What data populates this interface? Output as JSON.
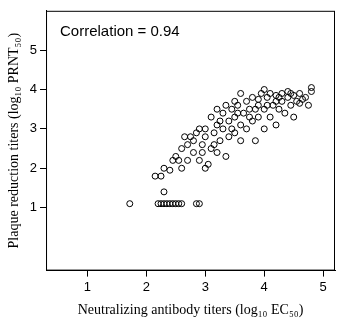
{
  "chart_data": {
    "type": "scatter",
    "annotation": "Correlation = 0.94",
    "x_label": "Neutralizing antibody titers (log₁₀ EC₅₀)",
    "y_label": "Plaque reduction titers (log₁₀ PRNT₅₀)",
    "x": [
      1.72,
      2.2,
      2.25,
      2.3,
      2.35,
      2.4,
      2.45,
      2.5,
      2.55,
      2.6,
      2.85,
      2.9,
      2.3,
      2.15,
      2.25,
      2.3,
      2.4,
      2.45,
      2.5,
      2.55,
      2.6,
      2.6,
      2.7,
      2.7,
      2.75,
      2.8,
      2.85,
      2.9,
      2.9,
      2.95,
      3.0,
      3.0,
      3.05,
      3.1,
      3.1,
      3.15,
      3.2,
      3.2,
      3.25,
      3.3,
      3.3,
      3.35,
      3.4,
      3.4,
      3.45,
      3.5,
      3.5,
      3.55,
      3.6,
      3.6,
      3.65,
      3.7,
      3.7,
      3.75,
      3.8,
      3.8,
      3.85,
      3.9,
      3.9,
      3.95,
      4.0,
      4.0,
      4.05,
      4.1,
      4.1,
      4.15,
      4.2,
      4.2,
      4.25,
      4.3,
      4.3,
      4.35,
      4.4,
      4.4,
      4.45,
      4.5,
      4.5,
      4.55,
      4.6,
      4.65,
      4.7,
      4.8,
      4.8,
      4.75,
      3.0,
      2.8,
      2.65,
      3.2,
      3.5,
      4.0,
      3.35,
      3.6,
      3.9,
      4.2,
      4.45,
      2.95,
      3.15,
      3.45,
      3.75,
      4.05,
      4.25,
      4.6,
      3.25,
      3.55,
      3.85
    ],
    "values": [
      1.1,
      1.1,
      1.1,
      1.1,
      1.1,
      1.1,
      1.1,
      1.1,
      1.1,
      1.1,
      1.1,
      1.1,
      1.4,
      1.8,
      1.8,
      2.0,
      1.95,
      2.2,
      2.3,
      2.2,
      2.5,
      2.0,
      2.2,
      2.6,
      2.8,
      2.4,
      2.9,
      3.0,
      2.2,
      2.6,
      2.8,
      2.0,
      2.1,
      2.5,
      3.3,
      2.9,
      3.1,
      2.4,
      2.7,
      3.4,
      3.0,
      2.3,
      3.2,
      2.8,
      3.5,
      3.3,
      2.9,
      3.6,
      3.1,
      2.7,
      3.4,
      3.7,
      3.0,
      3.5,
      3.2,
      3.8,
      2.7,
      3.6,
      3.3,
      3.9,
      3.5,
      3.0,
      3.8,
      3.9,
      3.3,
      3.6,
      3.85,
      3.1,
      3.5,
      3.9,
      3.7,
      3.4,
      3.8,
      3.95,
      3.6,
      3.85,
      3.3,
      3.7,
      3.9,
      3.75,
      3.8,
      3.95,
      4.05,
      3.6,
      3.0,
      2.7,
      2.8,
      3.5,
      3.7,
      4.0,
      3.6,
      3.9,
      3.75,
      3.7,
      3.9,
      2.4,
      2.6,
      3.0,
      3.3,
      3.6,
      3.8,
      3.65,
      3.2,
      3.4,
      3.5
    ],
    "color": "#000000",
    "marker": "circle",
    "xlim": [
      0.3,
      5.2
    ],
    "xticks": [
      1,
      2,
      3,
      4,
      5
    ],
    "ylim": [
      -0.6,
      6.0
    ],
    "yticks": [
      1,
      2,
      3,
      4,
      5
    ],
    "grid": false,
    "legend": null
  }
}
